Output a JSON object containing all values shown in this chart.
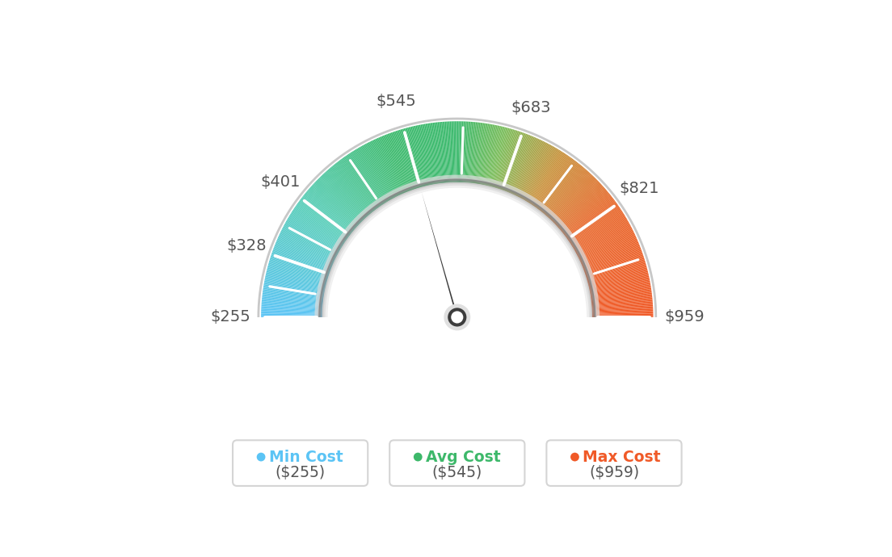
{
  "min_val": 255,
  "avg_val": 545,
  "max_val": 959,
  "tick_labels": [
    "$255",
    "$328",
    "$401",
    "$545",
    "$683",
    "$821",
    "$959"
  ],
  "tick_values": [
    255,
    328,
    401,
    545,
    683,
    821,
    959
  ],
  "legend_items": [
    {
      "label": "Min Cost",
      "value": "($255)",
      "color": "#5bc4f5"
    },
    {
      "label": "Avg Cost",
      "value": "($545)",
      "color": "#3db86a"
    },
    {
      "label": "Max Cost",
      "value": "($959)",
      "color": "#f05a28"
    }
  ],
  "background_color": "#ffffff",
  "needle_value": 545,
  "color_stops": [
    [
      0.0,
      "#5bc4f5"
    ],
    [
      0.2,
      "#56cdb8"
    ],
    [
      0.38,
      "#3dba6e"
    ],
    [
      0.5,
      "#3dba6e"
    ],
    [
      0.58,
      "#7cbd5a"
    ],
    [
      0.68,
      "#c8913a"
    ],
    [
      0.8,
      "#e8672a"
    ],
    [
      1.0,
      "#f05a28"
    ]
  ]
}
